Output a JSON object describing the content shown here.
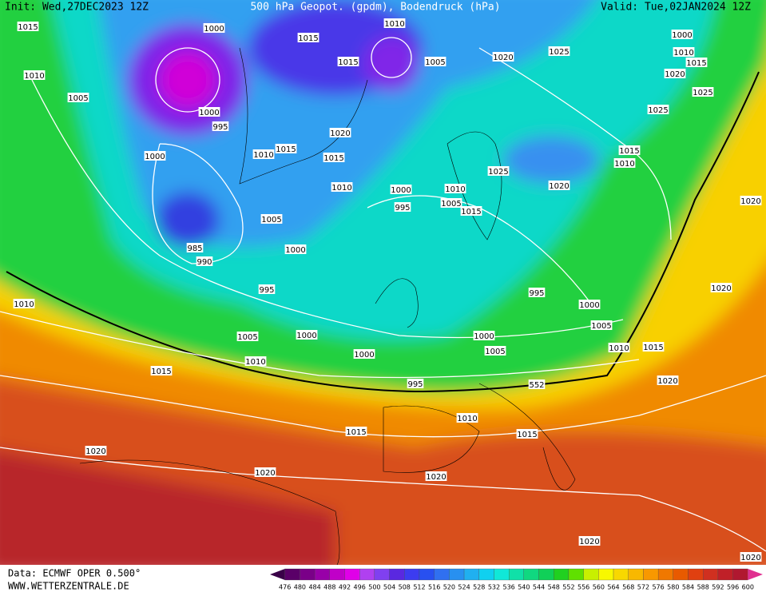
{
  "header": {
    "init": "Init: Wed,27DEC2023 12Z",
    "title": "500 hPa Geopot. (gpdm), Bodendruck (hPa)",
    "valid": "Valid: Tue,02JAN2024 12Z"
  },
  "footer": {
    "source": "Data: ECMWF OPER 0.500°",
    "site": "WWW.WETTERZENTRALE.DE"
  },
  "isobar_labels": [
    "1015",
    "1000",
    "1015",
    "1010",
    "1015",
    "1005",
    "1020",
    "1025",
    "1000",
    "1010",
    "1015",
    "1020",
    "1025",
    "1010",
    "1005",
    "1000",
    "995",
    "1020",
    "1015",
    "1010",
    "1015",
    "1000",
    "1025",
    "1015",
    "1010",
    "1025",
    "1020",
    "1010",
    "1000",
    "1010",
    "1005",
    "1015",
    "995",
    "1005",
    "985",
    "990",
    "1000",
    "1020",
    "1010",
    "995",
    "995",
    "1000",
    "1020",
    "1005",
    "1000",
    "1005",
    "1000",
    "1010",
    "1015",
    "1005",
    "1000",
    "1010",
    "1015",
    "995",
    "552",
    "1020",
    "1010",
    "1015",
    "1015",
    "1020",
    "1020",
    "1020",
    "1020",
    "1020"
  ],
  "scale": {
    "labels": [
      476,
      480,
      484,
      488,
      492,
      496,
      500,
      504,
      508,
      512,
      516,
      520,
      524,
      528,
      532,
      536,
      540,
      544,
      548,
      552,
      556,
      560,
      564,
      568,
      572,
      576,
      580,
      584,
      588,
      592,
      596,
      600
    ],
    "colors": [
      "#3a0048",
      "#5a0068",
      "#7a0088",
      "#9800a8",
      "#c000c8",
      "#e000e8",
      "#b040f0",
      "#8040f0",
      "#5a28e0",
      "#3c3cf0",
      "#2850f0",
      "#3070f0",
      "#2890f0",
      "#20b0f0",
      "#10d0f0",
      "#10e8d8",
      "#10e0a8",
      "#10d880",
      "#10d058",
      "#20d020",
      "#60e000",
      "#c8f000",
      "#f8f800",
      "#f8d800",
      "#f8b800",
      "#f89800",
      "#f07800",
      "#e85a00",
      "#e04010",
      "#d03020",
      "#c02028",
      "#b01830",
      "#e03090"
    ]
  }
}
